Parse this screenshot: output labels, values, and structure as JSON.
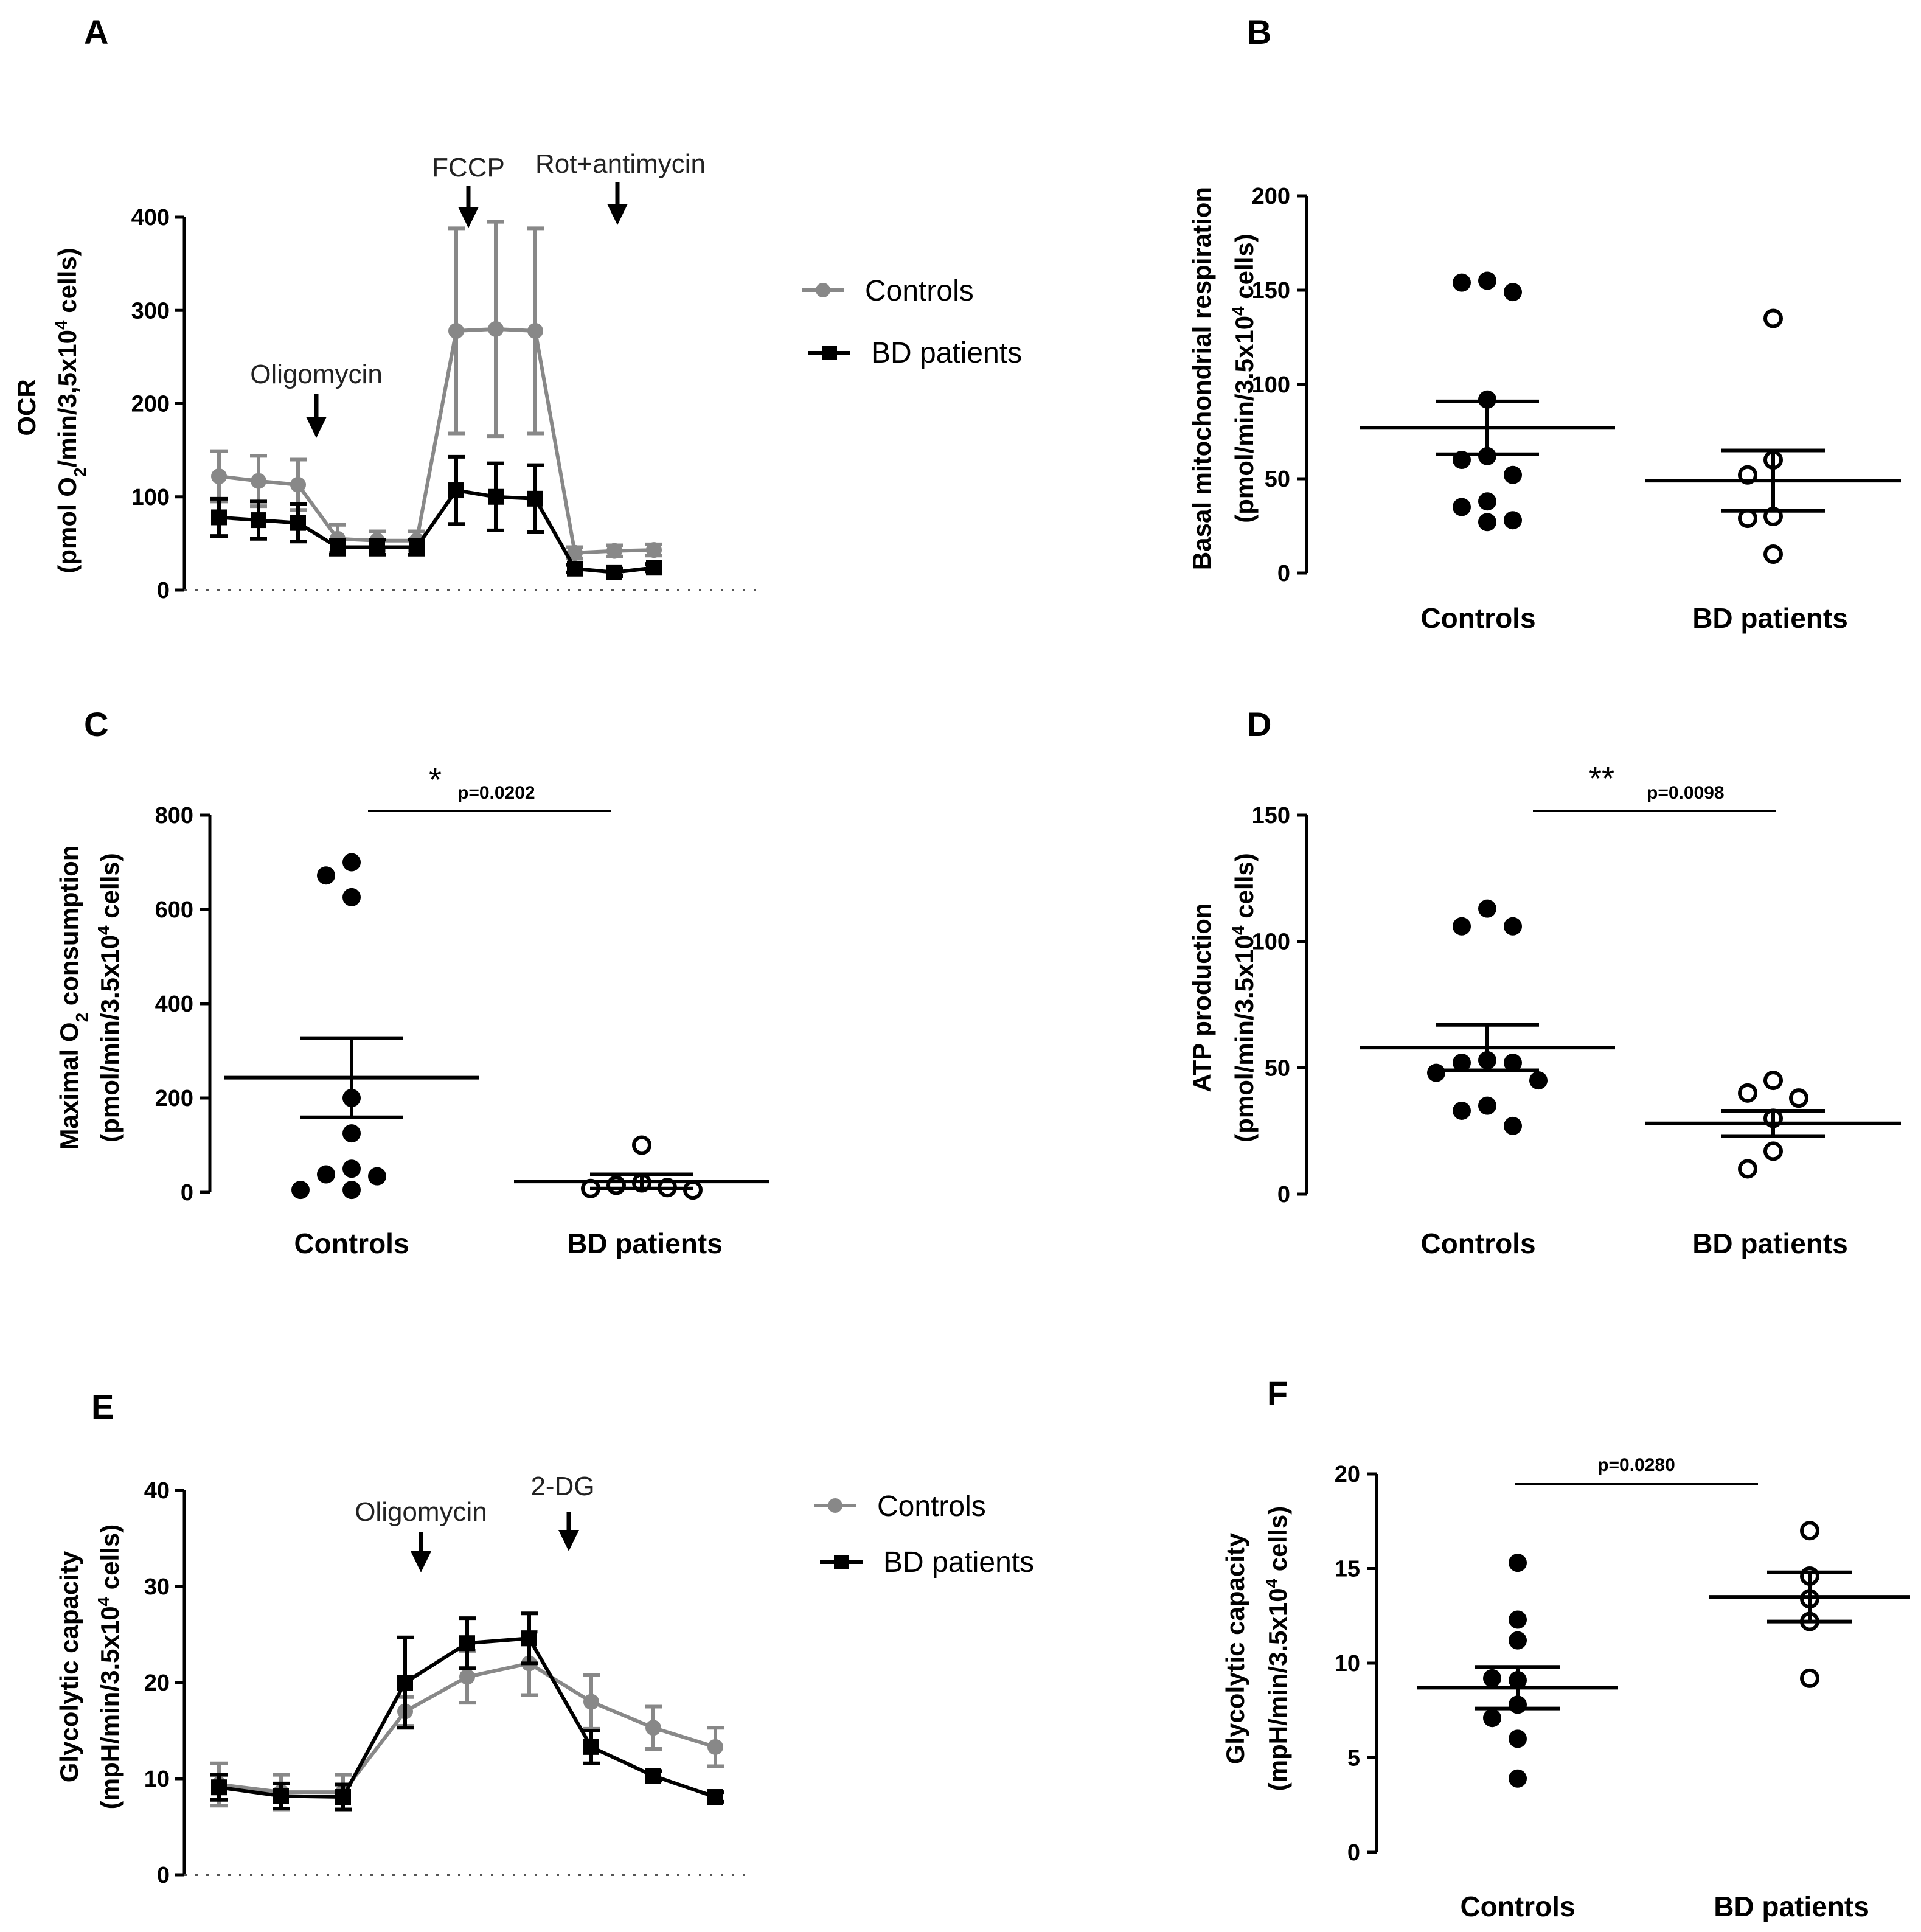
{
  "panels": {
    "A": {
      "letter": "A",
      "ylabel_main": "OCR",
      "ylabel_units_pre": "(pmol O",
      "ylabel_units_sub": "2",
      "ylabel_units_mid": "/min/3,5x10",
      "ylabel_units_sup": "4",
      "ylabel_units_post": " cells)",
      "annotations": [
        "Oligomycin",
        "FCCP",
        "Rot+antimycin"
      ],
      "legend": [
        "Controls",
        "BD patients"
      ]
    },
    "B": {
      "letter": "B",
      "ylabel_main": "Basal mitochondrial respiration",
      "ylabel_units_pre": "(pmol/min/3.5x10",
      "ylabel_units_sup": "4",
      "ylabel_units_post": " cells)",
      "categories": [
        "Controls",
        "BD patients"
      ]
    },
    "C": {
      "letter": "C",
      "ylabel_main_pre": "Maximal O",
      "ylabel_main_sub": "2",
      "ylabel_main_post": " consumption",
      "ylabel_units_pre": "(pmol/min/3.5x10",
      "ylabel_units_sup": "4",
      "ylabel_units_post": " cells)",
      "categories": [
        "Controls",
        "BD patients"
      ],
      "star": "*",
      "pvalue": "p=0.0202"
    },
    "D": {
      "letter": "D",
      "ylabel_main": "ATP production",
      "ylabel_units_pre": "(pmol/min/3.5x10",
      "ylabel_units_sup": "4",
      "ylabel_units_post": " cells)",
      "categories": [
        "Controls",
        "BD patients"
      ],
      "star": "**",
      "pvalue": "p=0.0098"
    },
    "E": {
      "letter": "E",
      "ylabel_main": "Glycolytic capacity",
      "ylabel_units_pre": "(mpH/min/3.5x10",
      "ylabel_units_sup": "4",
      "ylabel_units_post": " cells)",
      "annotations": [
        "Oligomycin",
        "2-DG"
      ],
      "legend": [
        "Controls",
        "BD patients"
      ]
    },
    "F": {
      "letter": "F",
      "ylabel_main": "Glycolytic capacity",
      "ylabel_units_pre": "(mpH/min/3.5x10",
      "ylabel_units_sup": "4",
      "ylabel_units_post": " cells)",
      "categories": [
        "Controls",
        "BD patients"
      ],
      "pvalue": "p=0.0280"
    }
  },
  "colors": {
    "controls": "#888888",
    "patients": "#000000"
  },
  "chart_data": [
    {
      "id": "A",
      "type": "line",
      "ylim": [
        0,
        400
      ],
      "yticks": [
        0,
        100,
        200,
        300,
        400
      ],
      "x": [
        1,
        2,
        3,
        4,
        5,
        6,
        7,
        8,
        9,
        10,
        11,
        12
      ],
      "series": [
        {
          "name": "Controls",
          "values": [
            122,
            117,
            113,
            55,
            53,
            53,
            278,
            280,
            278,
            40,
            42,
            43
          ],
          "err": [
            27,
            27,
            27,
            15,
            10,
            10,
            110,
            115,
            110,
            6,
            6,
            6
          ]
        },
        {
          "name": "BD patients",
          "values": [
            78,
            75,
            72,
            46,
            46,
            46,
            107,
            100,
            98,
            23,
            19,
            24
          ],
          "err": [
            20,
            20,
            20,
            8,
            8,
            8,
            36,
            36,
            36,
            4,
            4,
            4
          ]
        }
      ],
      "events": [
        {
          "label": "Oligomycin",
          "after_x": 3
        },
        {
          "label": "FCCP",
          "after_x": 6
        },
        {
          "label": "Rot+antimycin",
          "after_x": 9
        }
      ]
    },
    {
      "id": "B",
      "type": "scatter",
      "ylim": [
        0,
        200
      ],
      "yticks": [
        0,
        50,
        100,
        150,
        200
      ],
      "categories": [
        "Controls",
        "BD patients"
      ],
      "groups": [
        {
          "name": "Controls",
          "filled": true,
          "points": [
            155,
            154,
            149,
            92,
            62,
            60,
            52,
            38,
            35,
            28,
            27
          ],
          "mean": 77,
          "sem_upper": 91,
          "sem_lower": 63
        },
        {
          "name": "BD patients",
          "filled": false,
          "points": [
            135,
            60,
            52,
            30,
            29,
            10
          ],
          "mean": 49,
          "sem_upper": 65,
          "sem_lower": 33
        }
      ]
    },
    {
      "id": "C",
      "type": "scatter",
      "ylim": [
        0,
        800
      ],
      "yticks": [
        0,
        200,
        400,
        600,
        800
      ],
      "categories": [
        "Controls",
        "BD patients"
      ],
      "groups": [
        {
          "name": "Controls",
          "filled": true,
          "points": [
            700,
            672,
            626,
            200,
            125,
            50,
            38,
            34,
            5,
            5
          ],
          "mean": 243,
          "sem_upper": 327,
          "sem_lower": 159
        },
        {
          "name": "BD patients",
          "filled": false,
          "points": [
            100,
            20,
            15,
            10,
            8,
            5
          ],
          "mean": 23,
          "sem_upper": 38,
          "sem_lower": 8
        }
      ]
    },
    {
      "id": "D",
      "type": "scatter",
      "ylim": [
        0,
        150
      ],
      "yticks": [
        0,
        50,
        100,
        150
      ],
      "categories": [
        "Controls",
        "BD patients"
      ],
      "groups": [
        {
          "name": "Controls",
          "filled": true,
          "points": [
            113,
            106,
            106,
            53,
            52,
            52,
            48,
            45,
            35,
            33,
            27
          ],
          "mean": 58,
          "sem_upper": 67,
          "sem_lower": 49
        },
        {
          "name": "BD patients",
          "filled": false,
          "points": [
            45,
            40,
            38,
            30,
            17,
            10
          ],
          "mean": 28,
          "sem_upper": 33,
          "sem_lower": 23
        }
      ]
    },
    {
      "id": "E",
      "type": "line",
      "ylim": [
        0,
        40
      ],
      "yticks": [
        0,
        10,
        20,
        30,
        40
      ],
      "x": [
        1,
        2,
        3,
        4,
        5,
        6,
        7,
        8,
        9
      ],
      "series": [
        {
          "name": "Controls",
          "values": [
            9.4,
            8.6,
            8.6,
            17,
            20.6,
            22,
            18,
            15.3,
            13.3
          ],
          "err": [
            2.2,
            1.8,
            1.8,
            1.5,
            2.7,
            3.3,
            2.8,
            2.2,
            2
          ]
        },
        {
          "name": "BD patients",
          "values": [
            9.1,
            8.2,
            8.1,
            20,
            24.1,
            24.6,
            13.3,
            10.3,
            8.1
          ],
          "err": [
            1.3,
            1.3,
            1.3,
            4.7,
            2.6,
            2.6,
            1.7,
            0.5,
            0.5
          ]
        }
      ],
      "events": [
        {
          "label": "Oligomycin",
          "after_x": 4
        },
        {
          "label": "2-DG",
          "after_x": 6
        }
      ]
    },
    {
      "id": "F",
      "type": "scatter",
      "ylim": [
        0,
        20
      ],
      "yticks": [
        0,
        5,
        10,
        15,
        20
      ],
      "categories": [
        "Controls",
        "BD patients"
      ],
      "groups": [
        {
          "name": "Controls",
          "filled": true,
          "points": [
            15.3,
            12.3,
            11.2,
            9.1,
            9.2,
            7.8,
            7.1,
            6,
            3.9
          ],
          "mean": 8.7,
          "sem_upper": 9.8,
          "sem_lower": 7.6
        },
        {
          "name": "BD patients",
          "filled": false,
          "points": [
            17,
            14.6,
            13.4,
            12.2,
            9.2
          ],
          "mean": 13.5,
          "sem_upper": 14.8,
          "sem_lower": 12.2
        }
      ]
    }
  ]
}
